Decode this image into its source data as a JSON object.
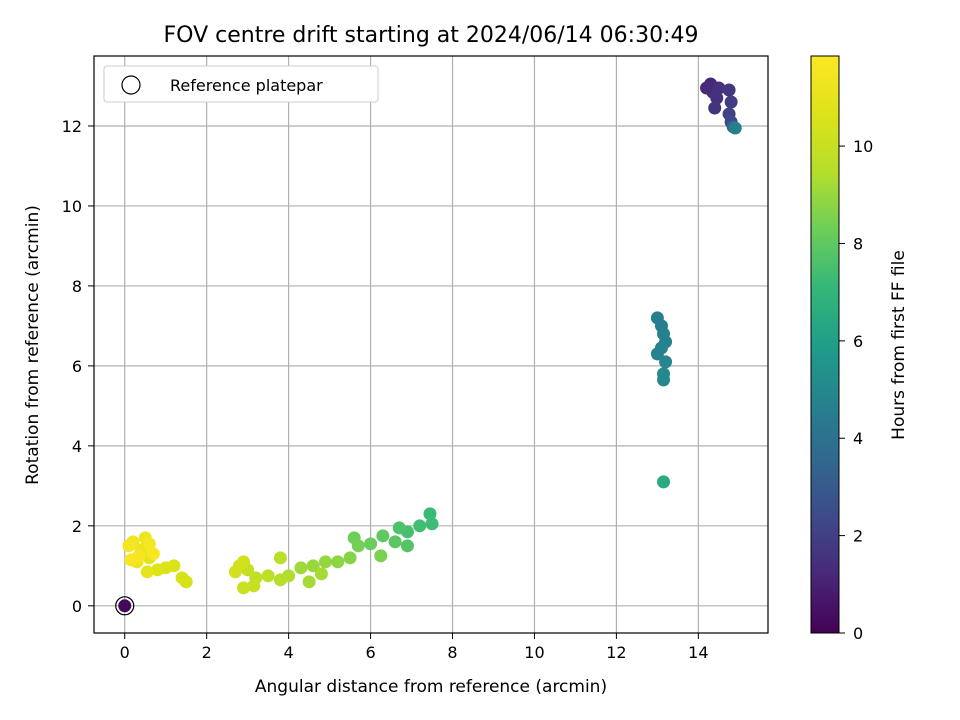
{
  "chart_data": {
    "type": "scatter",
    "title": "FOV centre drift starting at 2024/06/14 06:30:49",
    "xlabel": "Angular distance from reference (arcmin)",
    "ylabel": "Rotation from reference (arcmin)",
    "xlim": [
      -0.75,
      15.7
    ],
    "ylim": [
      -0.68,
      13.75
    ],
    "xticks": [
      0,
      2,
      4,
      6,
      8,
      10,
      12,
      14
    ],
    "yticks": [
      0,
      2,
      4,
      6,
      8,
      10,
      12
    ],
    "grid": true,
    "legend": {
      "placement": "upper-left",
      "entries": [
        "Reference platepar"
      ]
    },
    "colorbar": {
      "label": "Hours from first FF file",
      "range": [
        0,
        11.85
      ],
      "ticks": [
        0,
        2,
        4,
        6,
        8,
        10
      ],
      "colormap": "viridis"
    },
    "reference_point": {
      "x": 0,
      "y": 0
    },
    "series": [
      {
        "points": [
          {
            "x": 0.0,
            "y": 0.0,
            "h": 0.2
          },
          {
            "x": 14.3,
            "y": 13.05,
            "h": 1.2
          },
          {
            "x": 14.35,
            "y": 12.85,
            "h": 1.4
          },
          {
            "x": 14.2,
            "y": 12.95,
            "h": 1.3
          },
          {
            "x": 14.45,
            "y": 12.7,
            "h": 1.5
          },
          {
            "x": 14.4,
            "y": 12.45,
            "h": 1.6
          },
          {
            "x": 14.5,
            "y": 12.95,
            "h": 1.5
          },
          {
            "x": 14.75,
            "y": 12.9,
            "h": 1.7
          },
          {
            "x": 14.8,
            "y": 12.6,
            "h": 1.9
          },
          {
            "x": 14.75,
            "y": 12.3,
            "h": 2.1
          },
          {
            "x": 14.8,
            "y": 12.1,
            "h": 2.3
          },
          {
            "x": 14.85,
            "y": 11.98,
            "h": 3.2
          },
          {
            "x": 14.9,
            "y": 11.95,
            "h": 4.6
          },
          {
            "x": 13.0,
            "y": 7.2,
            "h": 4.6
          },
          {
            "x": 13.1,
            "y": 7.0,
            "h": 4.6
          },
          {
            "x": 13.15,
            "y": 6.8,
            "h": 4.7
          },
          {
            "x": 13.2,
            "y": 6.6,
            "h": 4.7
          },
          {
            "x": 13.0,
            "y": 6.3,
            "h": 4.8
          },
          {
            "x": 13.1,
            "y": 6.45,
            "h": 4.8
          },
          {
            "x": 13.2,
            "y": 6.1,
            "h": 4.9
          },
          {
            "x": 13.15,
            "y": 5.8,
            "h": 5.0
          },
          {
            "x": 13.15,
            "y": 5.65,
            "h": 5.0
          },
          {
            "x": 13.15,
            "y": 3.1,
            "h": 6.5
          },
          {
            "x": 7.45,
            "y": 2.3,
            "h": 7.2
          },
          {
            "x": 7.5,
            "y": 2.05,
            "h": 7.3
          },
          {
            "x": 7.2,
            "y": 2.0,
            "h": 7.4
          },
          {
            "x": 6.9,
            "y": 1.85,
            "h": 7.5
          },
          {
            "x": 6.7,
            "y": 1.95,
            "h": 7.6
          },
          {
            "x": 6.9,
            "y": 1.5,
            "h": 7.8
          },
          {
            "x": 6.6,
            "y": 1.6,
            "h": 7.9
          },
          {
            "x": 6.3,
            "y": 1.75,
            "h": 8.0
          },
          {
            "x": 6.0,
            "y": 1.55,
            "h": 8.2
          },
          {
            "x": 5.6,
            "y": 1.7,
            "h": 8.3
          },
          {
            "x": 5.7,
            "y": 1.5,
            "h": 8.4
          },
          {
            "x": 6.25,
            "y": 1.25,
            "h": 8.5
          },
          {
            "x": 5.5,
            "y": 1.2,
            "h": 8.7
          },
          {
            "x": 5.2,
            "y": 1.1,
            "h": 8.8
          },
          {
            "x": 4.9,
            "y": 1.1,
            "h": 8.9
          },
          {
            "x": 4.6,
            "y": 1.0,
            "h": 9.0
          },
          {
            "x": 4.3,
            "y": 0.95,
            "h": 9.1
          },
          {
            "x": 4.5,
            "y": 0.6,
            "h": 9.2
          },
          {
            "x": 4.8,
            "y": 0.8,
            "h": 9.2
          },
          {
            "x": 4.0,
            "y": 0.75,
            "h": 9.4
          },
          {
            "x": 3.8,
            "y": 0.65,
            "h": 9.5
          },
          {
            "x": 3.8,
            "y": 1.2,
            "h": 9.6
          },
          {
            "x": 3.5,
            "y": 0.75,
            "h": 9.7
          },
          {
            "x": 3.2,
            "y": 0.7,
            "h": 9.8
          },
          {
            "x": 3.0,
            "y": 0.9,
            "h": 9.9
          },
          {
            "x": 3.15,
            "y": 0.5,
            "h": 10.0
          },
          {
            "x": 2.9,
            "y": 0.45,
            "h": 10.1
          },
          {
            "x": 2.8,
            "y": 1.0,
            "h": 10.2
          },
          {
            "x": 2.9,
            "y": 1.1,
            "h": 10.3
          },
          {
            "x": 2.7,
            "y": 0.85,
            "h": 10.3
          },
          {
            "x": 1.5,
            "y": 0.6,
            "h": 10.4
          },
          {
            "x": 1.4,
            "y": 0.7,
            "h": 10.5
          },
          {
            "x": 1.2,
            "y": 1.0,
            "h": 10.6
          },
          {
            "x": 1.0,
            "y": 0.95,
            "h": 10.7
          },
          {
            "x": 0.8,
            "y": 0.9,
            "h": 10.8
          },
          {
            "x": 0.6,
            "y": 1.2,
            "h": 10.9
          },
          {
            "x": 0.55,
            "y": 0.85,
            "h": 11.0
          },
          {
            "x": 0.4,
            "y": 1.4,
            "h": 11.1
          },
          {
            "x": 0.3,
            "y": 1.1,
            "h": 11.2
          },
          {
            "x": 0.5,
            "y": 1.7,
            "h": 11.3
          },
          {
            "x": 0.2,
            "y": 1.6,
            "h": 11.4
          },
          {
            "x": 0.1,
            "y": 1.5,
            "h": 11.5
          },
          {
            "x": 0.6,
            "y": 1.55,
            "h": 11.5
          },
          {
            "x": 0.35,
            "y": 1.25,
            "h": 11.6
          },
          {
            "x": 0.15,
            "y": 1.15,
            "h": 11.7
          },
          {
            "x": 0.7,
            "y": 1.3,
            "h": 11.7
          }
        ]
      }
    ]
  }
}
